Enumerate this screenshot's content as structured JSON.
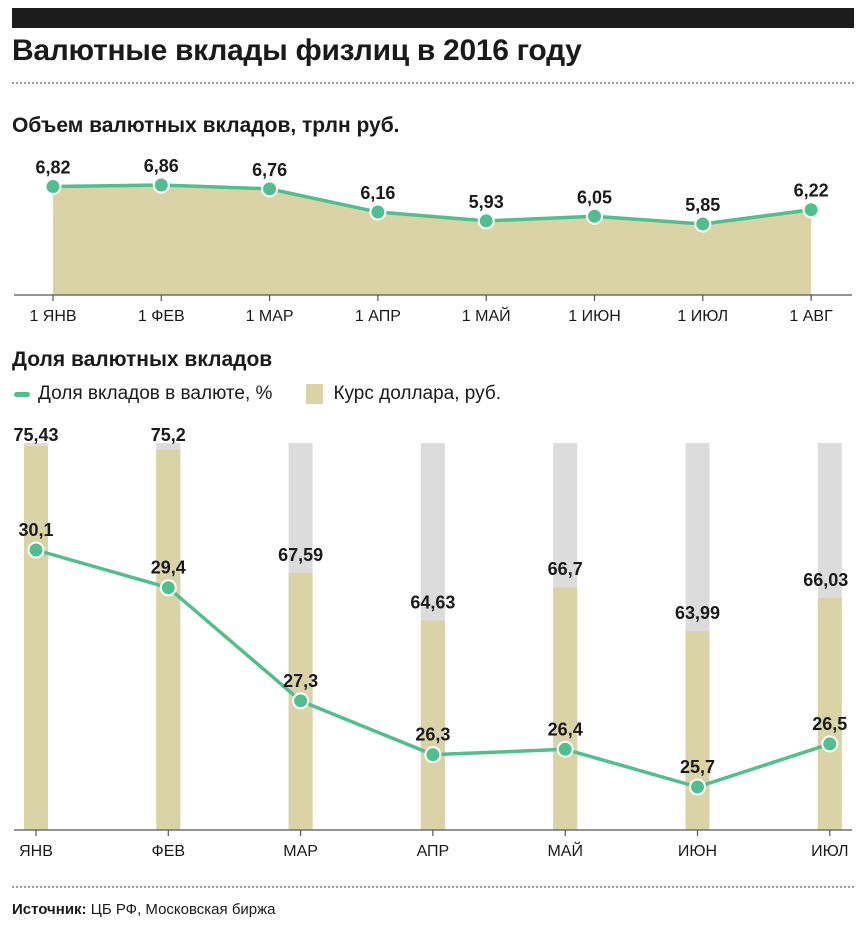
{
  "title": "Валютные вклады физлиц в 2016 году",
  "source": {
    "label": "Источник:",
    "text": " ЦБ РФ, Московская биржа"
  },
  "chart_data": [
    {
      "type": "area",
      "title": "Объем валютных вкладов, трлн руб.",
      "categories": [
        "1 ЯНВ",
        "1 ФЕВ",
        "1 МАР",
        "1 АПР",
        "1 МАЙ",
        "1 ИЮН",
        "1 ИЮЛ",
        "1 АВГ"
      ],
      "values": [
        6.82,
        6.86,
        6.76,
        6.16,
        5.93,
        6.05,
        5.85,
        6.22
      ],
      "labels": [
        "6,82",
        "6,86",
        "6,76",
        "6,16",
        "5,93",
        "6,05",
        "5,85",
        "6,22"
      ],
      "colors": {
        "area": "#d9d3a6",
        "line": "#4fbf8f"
      }
    },
    {
      "type": "bar+line",
      "title": "Доля валютных вкладов",
      "categories": [
        "ЯНВ",
        "ФЕВ",
        "МАР",
        "АПР",
        "МАЙ",
        "ИЮН",
        "ИЮЛ"
      ],
      "series": [
        {
          "name": "Доля вкладов в валюте, %",
          "type": "line",
          "values": [
            30.1,
            29.4,
            27.3,
            26.3,
            26.4,
            25.7,
            26.5
          ],
          "labels": [
            "30,1",
            "29,4",
            "27,3",
            "26,3",
            "26,4",
            "25,7",
            "26,5"
          ]
        },
        {
          "name": "Курс доллара, руб.",
          "type": "bar",
          "values": [
            75.43,
            75.2,
            67.59,
            64.63,
            66.7,
            63.99,
            66.03
          ],
          "labels": [
            "75,43",
            "75,2",
            "67,59",
            "64,63",
            "66,7",
            "63,99",
            "66,03"
          ]
        }
      ],
      "colors": {
        "bar": "#d9d3a6",
        "bar_background": "#dcdcdc",
        "line": "#4fbf8f"
      }
    }
  ]
}
